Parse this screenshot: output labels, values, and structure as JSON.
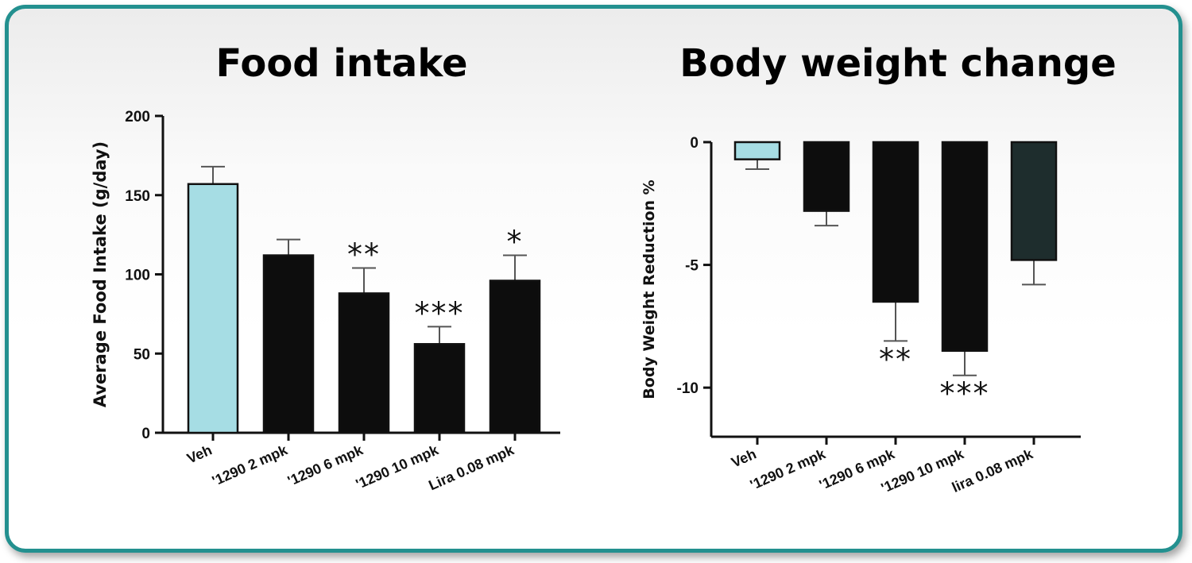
{
  "chart_data": [
    {
      "type": "bar",
      "title": "Food intake",
      "xlabel": "",
      "ylabel": "Average Food Intake (g/day)",
      "ylim": [
        0,
        200
      ],
      "yticks": [
        0,
        50,
        100,
        150,
        200
      ],
      "categories": [
        "Veh",
        "'1290 2 mpk",
        "'1290 6 mpk",
        "'1290 10 mpk",
        "Lira 0.08 mpk"
      ],
      "values": [
        157,
        112,
        88,
        56,
        96
      ],
      "errors": [
        11,
        10,
        16,
        11,
        16
      ],
      "significance": [
        "",
        "",
        "**",
        "***",
        "*"
      ],
      "colors": [
        "#a6dde4",
        "#0d0d0d",
        "#0d0d0d",
        "#0d0d0d",
        "#0d0d0d"
      ]
    },
    {
      "type": "bar",
      "title": "Body weight change",
      "xlabel": "",
      "ylabel": "Body Weight Reduction %",
      "ylim": [
        -12,
        0
      ],
      "yticks": [
        0,
        -5,
        -10
      ],
      "categories": [
        "Veh",
        "'1290 2 mpk",
        "'1290 6 mpk",
        "'1290 10 mpk",
        "lira 0.08 mpk"
      ],
      "values": [
        -0.7,
        -2.8,
        -6.5,
        -8.5,
        -4.8
      ],
      "errors": [
        0.4,
        0.6,
        1.6,
        1.0,
        1.0
      ],
      "significance": [
        "",
        "",
        "**",
        "***",
        ""
      ],
      "colors": [
        "#a6dde4",
        "#0d0d0d",
        "#0d0d0d",
        "#0d0d0d",
        "#1e2d2d"
      ]
    }
  ],
  "colors": {
    "frame_border": "#23908f"
  }
}
